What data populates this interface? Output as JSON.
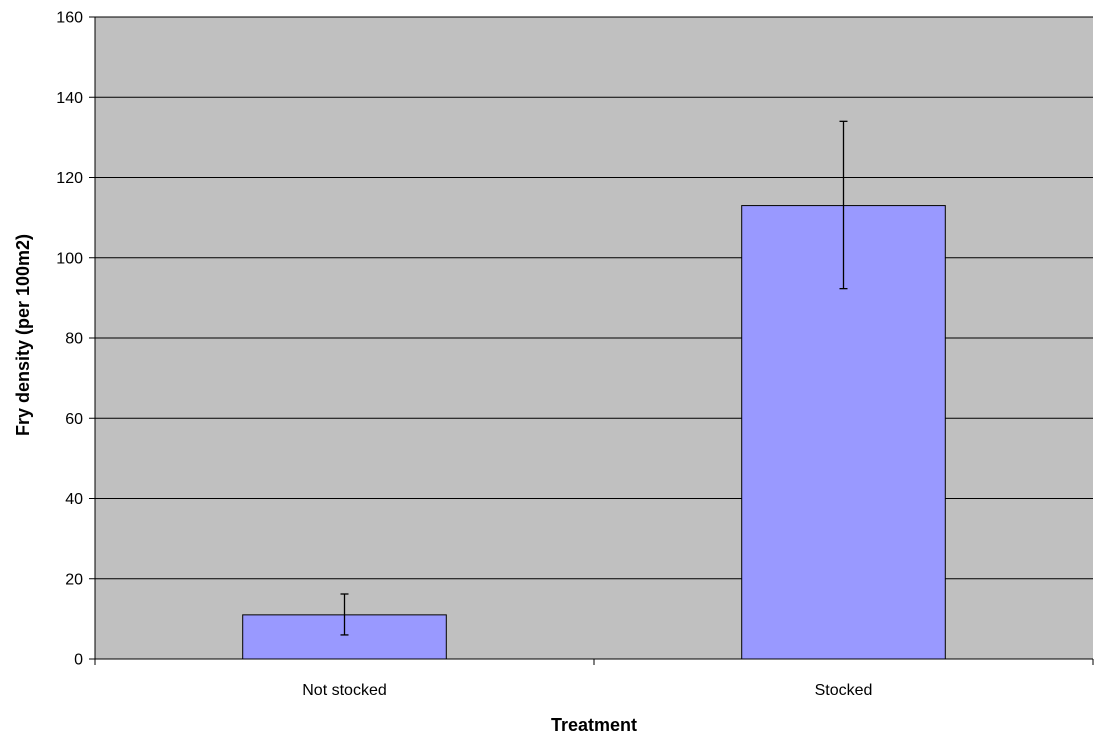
{
  "chart_data": {
    "type": "bar",
    "title": "",
    "xlabel": "Treatment",
    "ylabel": "Fry density (per 100m2)",
    "categories": [
      "Not stocked",
      "Stocked"
    ],
    "values": [
      11,
      113
    ],
    "error": [
      {
        "low": 6,
        "high": 16.2
      },
      {
        "low": 92.3,
        "high": 134
      }
    ],
    "ylim": [
      0,
      160
    ],
    "yticks": [
      "0",
      "20",
      "40",
      "60",
      "80",
      "100",
      "120",
      "140",
      "160"
    ],
    "grid": true,
    "legend": "none",
    "colors": {
      "plot_background": "#c0c0c0",
      "bar_fill": "#9999ff",
      "bar_stroke": "#000000",
      "gridline": "#000000"
    }
  }
}
